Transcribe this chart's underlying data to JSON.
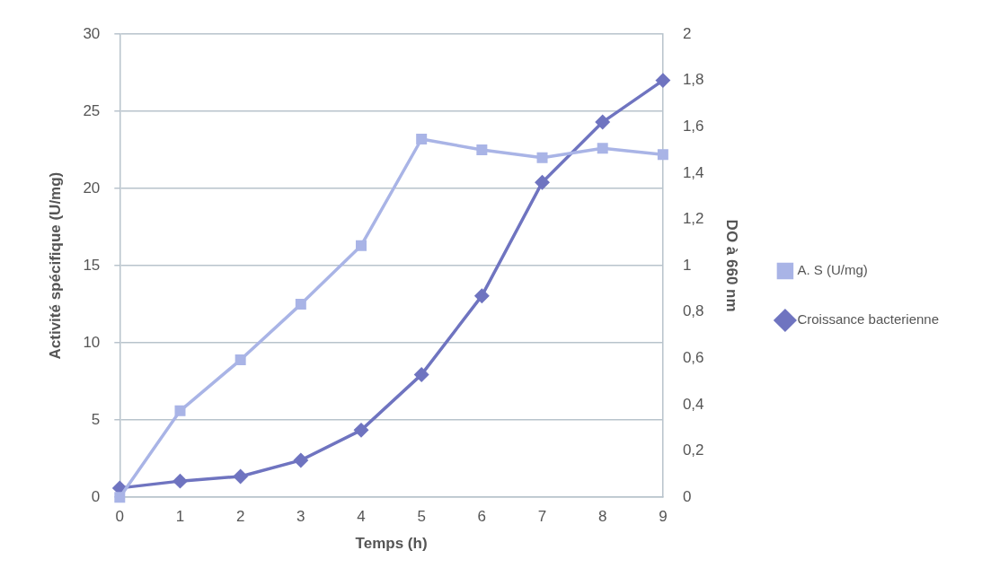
{
  "chart_data": {
    "type": "line",
    "xlabel": "Temps (h)",
    "ylabel": "Activité spécifique (U/mg)",
    "y2label": "DO à 660 nm",
    "categories": [
      "0",
      "1",
      "2",
      "3",
      "4",
      "5",
      "6",
      "7",
      "8",
      "9"
    ],
    "ylim": [
      0,
      30
    ],
    "yticks": [
      0,
      5,
      10,
      15,
      20,
      25,
      30
    ],
    "y2lim": [
      0,
      2
    ],
    "y2ticks": [
      0,
      {
        "value": 0.2,
        "label": "0,2"
      },
      {
        "value": 0.4,
        "label": "0,4"
      },
      {
        "value": 0.6,
        "label": "0,6"
      },
      {
        "value": 0.8,
        "label": "0,8"
      },
      1,
      {
        "value": 1.2,
        "label": "1,2"
      },
      {
        "value": 1.4,
        "label": "1,4"
      },
      {
        "value": 1.6,
        "label": "1,6"
      },
      {
        "value": 1.8,
        "label": "1,8"
      },
      2
    ],
    "grid": "y",
    "legend": "right",
    "series": [
      {
        "name": "A. S (U/mg)",
        "color": "#a9b4e6",
        "marker": "square",
        "values": [
          0,
          5.6,
          8.9,
          12.5,
          16.3,
          23.2,
          22.5,
          22.0,
          22.6,
          22.2
        ]
      },
      {
        "name": "Croissance bacterienne",
        "color": "#6f74c0",
        "marker": "diamond",
        "axis": "y2",
        "values": [
          0.04,
          0.07,
          0.09,
          0.16,
          0.29,
          0.53,
          0.87,
          1.36,
          1.62,
          1.8
        ]
      }
    ]
  }
}
